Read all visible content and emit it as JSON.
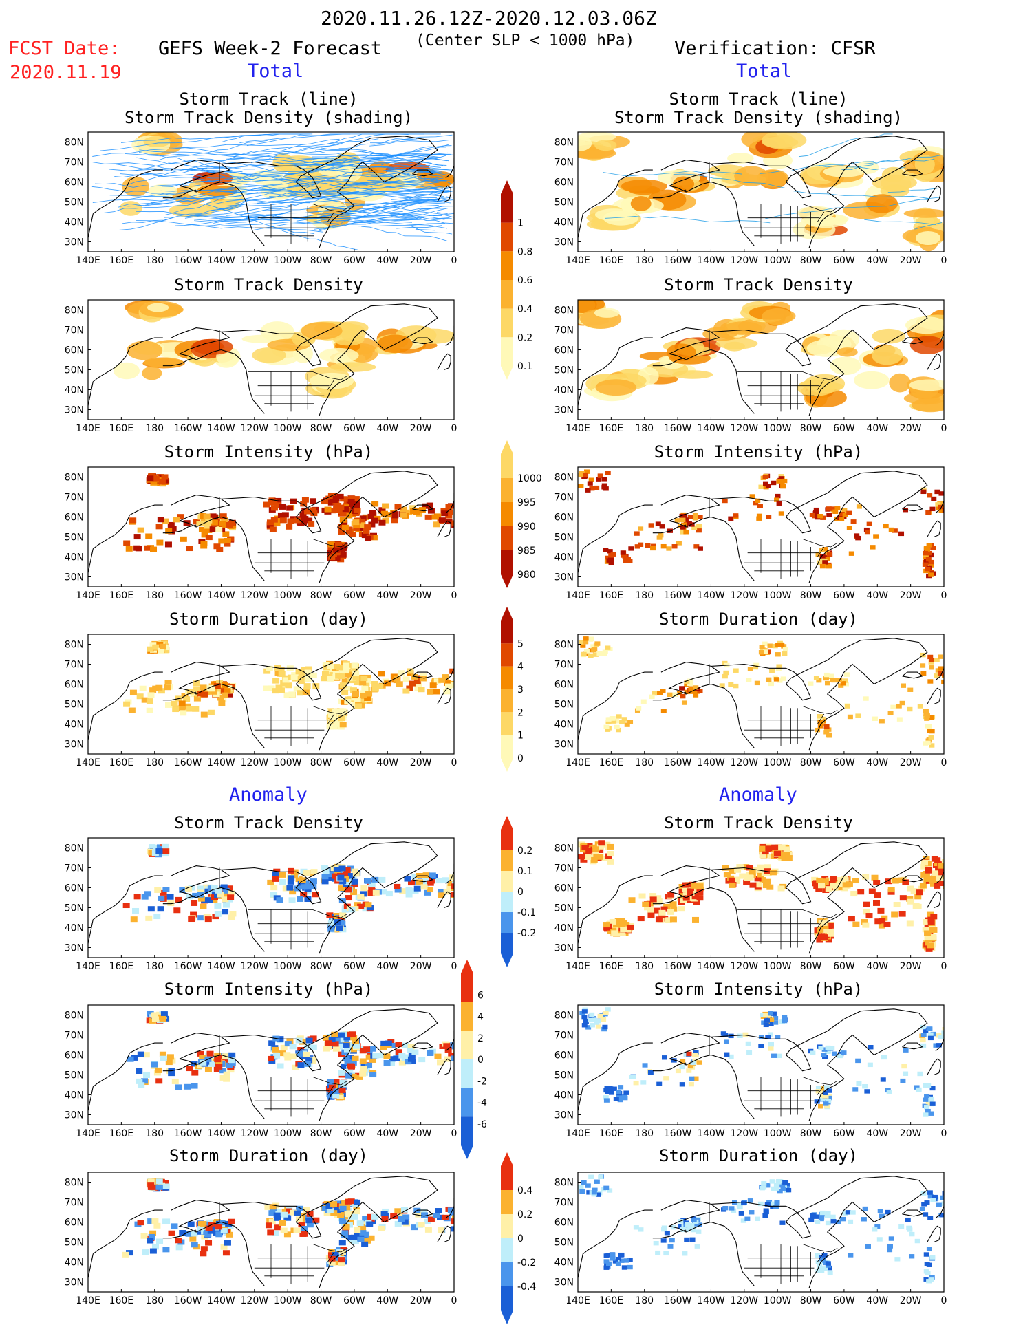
{
  "header": {
    "date_range": "2020.11.26.12Z-2020.12.03.06Z",
    "subtitle": "(Center SLP < 1000 hPa)",
    "fcst_label": "FCST Date:",
    "fcst_date": "2020.11.19",
    "left_model": "GEFS Week-2 Forecast",
    "right_model": "Verification: CFSR",
    "total_label": "Total",
    "anomaly_label": "Anomaly"
  },
  "colors": {
    "ocean": "#ffffff",
    "coast": "#000000",
    "track_gefs": "#1e90ff",
    "track_cfsr": "#26a0e8",
    "scale_5": [
      "#fff9b8",
      "#fdd866",
      "#fbb230",
      "#f58a00",
      "#e04800",
      "#b01000"
    ],
    "scale_anom": [
      "#1a5fd6",
      "#4a95ec",
      "#bfeefa",
      "#fff0a8",
      "#fbb230",
      "#e83010"
    ]
  },
  "chart_data": [
    {
      "id": "gefs_track",
      "type": "heatmap",
      "title": [
        "Storm Track (line)",
        "Storm Track Density (shading)"
      ],
      "source": "GEFS Week-2 Forecast",
      "mode": "Total",
      "xlabels": [
        "140E",
        "160E",
        "180",
        "160W",
        "140W",
        "120W",
        "100W",
        "80W",
        "60W",
        "40W",
        "20W",
        "0"
      ],
      "ylabels": [
        "80N",
        "70N",
        "60N",
        "50N",
        "40N",
        "30N"
      ],
      "lon_range": [
        140,
        360
      ],
      "lat_range": [
        25,
        85
      ],
      "lines": "dense ensemble tracks"
    },
    {
      "id": "cfsr_track",
      "type": "heatmap",
      "title": [
        "Storm Track (line)",
        "Storm Track Density (shading)"
      ],
      "source": "Verification: CFSR",
      "mode": "Total"
    },
    {
      "id": "gefs_density",
      "type": "heatmap",
      "title": "Storm Track Density",
      "mode": "Total"
    },
    {
      "id": "cfsr_density",
      "type": "heatmap",
      "title": "Storm Track Density",
      "mode": "Total"
    },
    {
      "id": "gefs_intensity",
      "type": "heatmap",
      "title": "Storm Intensity (hPa)",
      "mode": "Total"
    },
    {
      "id": "cfsr_intensity",
      "type": "heatmap",
      "title": "Storm Intensity (hPa)",
      "mode": "Total"
    },
    {
      "id": "gefs_duration",
      "type": "heatmap",
      "title": "Storm Duration (day)",
      "mode": "Total"
    },
    {
      "id": "cfsr_duration",
      "type": "heatmap",
      "title": "Storm Duration (day)",
      "mode": "Total"
    },
    {
      "id": "gefs_density_anom",
      "type": "heatmap",
      "title": "Storm Track Density",
      "mode": "Anomaly"
    },
    {
      "id": "cfsr_density_anom",
      "type": "heatmap",
      "title": "Storm Track Density",
      "mode": "Anomaly"
    },
    {
      "id": "gefs_intensity_anom",
      "type": "heatmap",
      "title": "Storm Intensity (hPa)",
      "mode": "Anomaly"
    },
    {
      "id": "cfsr_intensity_anom",
      "type": "heatmap",
      "title": "Storm Intensity (hPa)",
      "mode": "Anomaly"
    },
    {
      "id": "gefs_duration_anom",
      "type": "heatmap",
      "title": "Storm Duration (day)",
      "mode": "Anomaly"
    },
    {
      "id": "cfsr_duration_anom",
      "type": "heatmap",
      "title": "Storm Duration (day)",
      "mode": "Anomaly"
    }
  ],
  "axes": {
    "xlabels": [
      "140E",
      "160E",
      "180",
      "160W",
      "140W",
      "120W",
      "100W",
      "80W",
      "60W",
      "40W",
      "20W",
      "0"
    ],
    "ylabels": [
      "80N",
      "70N",
      "60N",
      "50N",
      "40N",
      "30N"
    ]
  },
  "colorbars": [
    {
      "id": "density",
      "labels": [
        "1",
        "0.8",
        "0.6",
        "0.4",
        "0.2",
        "0.1"
      ]
    },
    {
      "id": "intensity",
      "labels": [
        "1000",
        "995",
        "990",
        "985",
        "980"
      ]
    },
    {
      "id": "duration",
      "labels": [
        "5",
        "4",
        "3",
        "2",
        "1",
        "0"
      ]
    },
    {
      "id": "density_anom",
      "labels": [
        "0.2",
        "0.1",
        "0",
        "-0.1",
        "-0.2"
      ]
    },
    {
      "id": "intensity_anom",
      "labels": [
        "6",
        "4",
        "2",
        "0",
        "-2",
        "-4",
        "-6"
      ]
    },
    {
      "id": "duration_anom",
      "labels": [
        "0.4",
        "0.2",
        "0",
        "-0.2",
        "-0.4"
      ]
    }
  ]
}
